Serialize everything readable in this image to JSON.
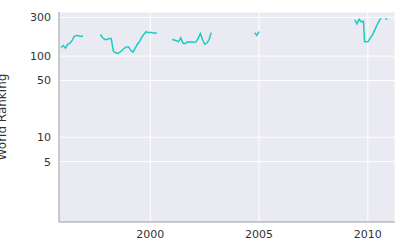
{
  "chart_data": {
    "type": "line",
    "y_label": "World Ranking",
    "log": "y",
    "grid": true,
    "color": "#1ccbc2",
    "xlim": [
      1995.8,
      2011.25
    ],
    "xticks": [
      2000,
      2005,
      2010
    ],
    "ylim": [
      0.9,
      350
    ],
    "yticks": [
      5,
      10,
      50,
      100,
      300
    ],
    "x": [
      1995.9,
      1996.0,
      1996.1,
      1996.2,
      1996.3,
      1996.4,
      1996.5,
      1996.6,
      1996.7,
      1996.8,
      1996.9,
      1997.2,
      1997.7,
      1997.8,
      1997.9,
      1998.0,
      1998.1,
      1998.2,
      1998.3,
      1998.4,
      1998.5,
      1998.6,
      1998.7,
      1998.8,
      1998.9,
      1999.0,
      1999.1,
      1999.2,
      1999.3,
      1999.4,
      1999.5,
      1999.6,
      1999.7,
      1999.8,
      1999.9,
      2000.0,
      2000.1,
      2000.2,
      2000.3,
      2000.6,
      2001.0,
      2001.1,
      2001.2,
      2001.3,
      2001.4,
      2001.5,
      2001.6,
      2001.7,
      2001.8,
      2001.9,
      2002.0,
      2002.1,
      2002.2,
      2002.3,
      2002.4,
      2002.5,
      2002.6,
      2002.7,
      2002.8,
      2003.8,
      2004.8,
      2004.9,
      2005.0,
      2007.0,
      2009.4,
      2009.5,
      2009.6,
      2009.7,
      2009.8,
      2009.85,
      2009.9,
      2010.0,
      2010.1,
      2010.2,
      2010.3,
      2010.4,
      2010.5,
      2010.6,
      2010.7,
      2010.8,
      2010.9
    ],
    "values": [
      128,
      135,
      125,
      140,
      145,
      155,
      175,
      180,
      178,
      175,
      178,
      null,
      185,
      170,
      160,
      160,
      165,
      165,
      115,
      110,
      108,
      112,
      118,
      125,
      130,
      130,
      118,
      112,
      125,
      140,
      150,
      170,
      185,
      200,
      195,
      195,
      195,
      190,
      195,
      null,
      160,
      158,
      155,
      150,
      168,
      145,
      142,
      150,
      148,
      150,
      147,
      150,
      165,
      190,
      160,
      140,
      145,
      160,
      195,
      null,
      195,
      180,
      200,
      null,
      280,
      250,
      285,
      265,
      270,
      150,
      150,
      150,
      165,
      180,
      205,
      235,
      265,
      295,
      null,
      290,
      285
    ]
  }
}
